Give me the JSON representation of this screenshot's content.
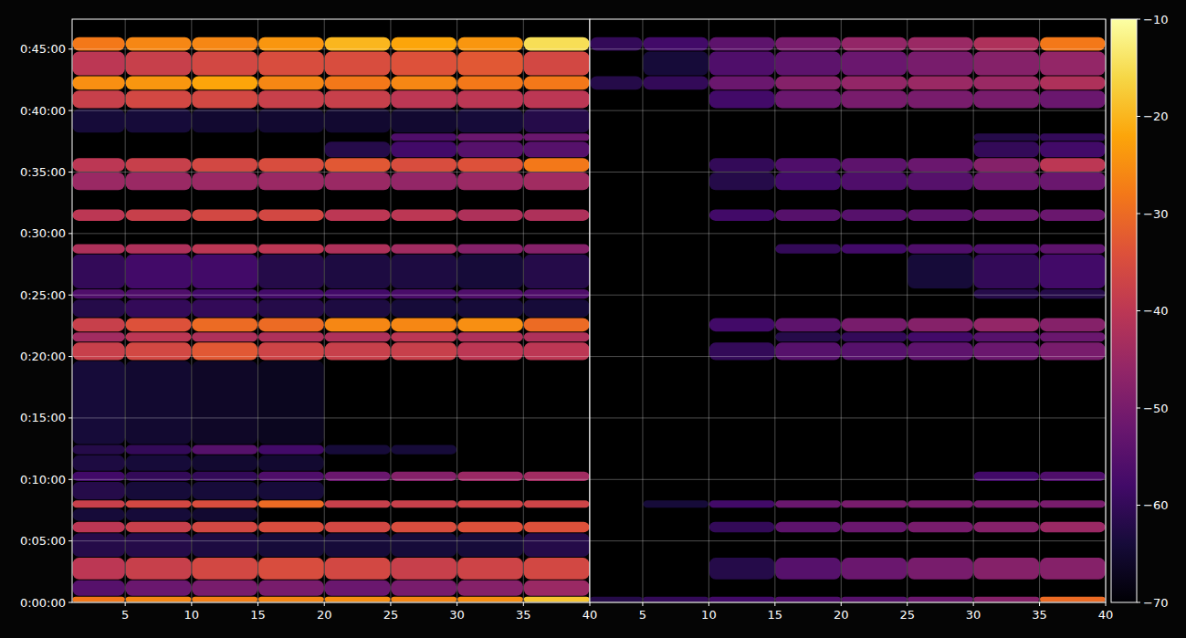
{
  "chart_data": {
    "type": "heatmap",
    "grid": true,
    "ylim": [
      0,
      2846
    ],
    "yticks": [
      {
        "value": 0,
        "label": "0:00:00"
      },
      {
        "value": 300,
        "label": "0:05:00"
      },
      {
        "value": 600,
        "label": "0:10:00"
      },
      {
        "value": 900,
        "label": "0:15:00"
      },
      {
        "value": 1200,
        "label": "0:20:00"
      },
      {
        "value": 1500,
        "label": "0:25:00"
      },
      {
        "value": 1800,
        "label": "0:30:00"
      },
      {
        "value": 2100,
        "label": "0:35:00"
      },
      {
        "value": 2400,
        "label": "0:40:00"
      },
      {
        "value": 2700,
        "label": "0:45:00"
      }
    ],
    "x_edges": [
      1,
      5,
      10,
      15,
      20,
      25,
      30,
      35,
      40
    ],
    "y_edges": [
      0,
      30,
      110,
      220,
      340,
      395,
      460,
      500,
      590,
      640,
      720,
      770,
      1180,
      1270,
      1320,
      1390,
      1480,
      1530,
      1700,
      1750,
      1860,
      1920,
      2010,
      2100,
      2170,
      2250,
      2290,
      2410,
      2500,
      2570,
      2690,
      2760
    ],
    "colorbar": {
      "range": [
        -70,
        -10
      ],
      "ticks": [
        {
          "value": -70,
          "label": "−70"
        },
        {
          "value": -60,
          "label": "−60"
        },
        {
          "value": -50,
          "label": "−50"
        },
        {
          "value": -40,
          "label": "−40"
        },
        {
          "value": -30,
          "label": "−30"
        },
        {
          "value": -20,
          "label": "−20"
        },
        {
          "value": -10,
          "label": "−10"
        }
      ]
    },
    "panels": [
      {
        "xlim": [
          1,
          40
        ],
        "xticks": [
          5,
          10,
          15,
          20,
          25,
          30,
          35,
          40
        ],
        "values": [
          [
            -28,
            -26,
            -27,
            -26,
            -25,
            -26,
            -25,
            -18
          ],
          [
            -55,
            -52,
            -50,
            -50,
            -52,
            -50,
            -48,
            -45
          ],
          [
            -40,
            -38,
            -36,
            -35,
            -36,
            -38,
            -37,
            -36
          ],
          [
            -62,
            -62,
            -63,
            -64,
            -64,
            -64,
            -64,
            -62
          ],
          [
            -40,
            -38,
            -36,
            -35,
            -36,
            -35,
            -34,
            -34
          ],
          [
            -64,
            -64,
            -65,
            null,
            null,
            null,
            null,
            null
          ],
          [
            -38,
            -36,
            -35,
            -30,
            -38,
            -38,
            -37,
            -37
          ],
          [
            -62,
            -64,
            -64,
            -64,
            null,
            null,
            null,
            null
          ],
          [
            -58,
            -60,
            -60,
            -56,
            -52,
            -48,
            -45,
            -44
          ],
          [
            -63,
            -64,
            -65,
            -65,
            null,
            null,
            null,
            null
          ],
          [
            -62,
            -60,
            -55,
            -58,
            -64,
            -64,
            null,
            null
          ],
          [
            -64,
            -65,
            -66,
            -67,
            null,
            null,
            null,
            null
          ],
          [
            -38,
            -36,
            -33,
            -37,
            -38,
            -38,
            -40,
            -40
          ],
          [
            -44,
            -40,
            -42,
            -42,
            -42,
            -40,
            -42,
            -42
          ],
          [
            -38,
            -34,
            -30,
            -30,
            -26,
            -26,
            -25,
            -30
          ],
          [
            -62,
            -60,
            -60,
            -62,
            -63,
            -64,
            -64,
            -64
          ],
          [
            -56,
            -56,
            -58,
            -58,
            -58,
            -57,
            -56,
            -56
          ],
          [
            -60,
            -58,
            -58,
            -62,
            -63,
            -63,
            -64,
            -62
          ],
          [
            -42,
            -42,
            -40,
            -40,
            -42,
            -44,
            -48,
            -48
          ],
          [
            null,
            null,
            null,
            null,
            null,
            null,
            null,
            null
          ],
          [
            -40,
            -38,
            -36,
            -36,
            -40,
            -40,
            -42,
            -42
          ],
          [
            null,
            null,
            null,
            null,
            null,
            null,
            null,
            null
          ],
          [
            -45,
            -45,
            -45,
            -45,
            -45,
            -46,
            -45,
            -44
          ],
          [
            -40,
            -38,
            -36,
            -35,
            -33,
            -35,
            -34,
            -28
          ],
          [
            null,
            null,
            null,
            null,
            -62,
            -58,
            -55,
            -55
          ],
          [
            null,
            null,
            null,
            null,
            null,
            -56,
            -52,
            -52
          ],
          [
            -64,
            -64,
            -65,
            -65,
            -65,
            -65,
            -64,
            -62
          ],
          [
            -38,
            -36,
            -36,
            -38,
            -38,
            -40,
            -40,
            -40
          ],
          [
            -25,
            -24,
            -22,
            -26,
            -28,
            -26,
            -28,
            -28
          ],
          [
            -40,
            -38,
            -36,
            -35,
            -35,
            -34,
            -33,
            -36
          ],
          [
            -28,
            -26,
            -26,
            -24,
            -20,
            -22,
            -24,
            -15
          ]
        ]
      },
      {
        "xlim": [
          1,
          40
        ],
        "xticks": [
          5,
          10,
          15,
          20,
          25,
          30,
          35,
          40
        ],
        "values": [
          [
            -62,
            -60,
            -58,
            -56,
            -55,
            -52,
            -48,
            -30
          ],
          [
            null,
            null,
            null,
            null,
            null,
            null,
            null,
            null
          ],
          [
            null,
            null,
            -62,
            -55,
            -52,
            -50,
            -48,
            -48
          ],
          [
            null,
            null,
            null,
            null,
            null,
            null,
            null,
            null
          ],
          [
            null,
            null,
            -60,
            -54,
            -52,
            -50,
            -48,
            -45
          ],
          [
            null,
            null,
            null,
            null,
            null,
            null,
            null,
            null
          ],
          [
            null,
            -64,
            -58,
            -52,
            -50,
            -50,
            -50,
            -50
          ],
          [
            null,
            null,
            null,
            null,
            null,
            null,
            null,
            null
          ],
          [
            null,
            null,
            null,
            null,
            null,
            null,
            -58,
            -56
          ],
          [
            null,
            null,
            null,
            null,
            null,
            null,
            null,
            null
          ],
          [
            null,
            null,
            null,
            null,
            null,
            null,
            null,
            null
          ],
          [
            null,
            null,
            null,
            null,
            null,
            null,
            null,
            null
          ],
          [
            null,
            null,
            -60,
            -55,
            -55,
            -54,
            -52,
            -50
          ],
          [
            null,
            null,
            null,
            -62,
            -60,
            -58,
            -55,
            -52
          ],
          [
            null,
            null,
            -58,
            -54,
            -50,
            -48,
            -46,
            -48
          ],
          [
            null,
            null,
            null,
            null,
            null,
            null,
            null,
            null
          ],
          [
            null,
            null,
            null,
            null,
            null,
            null,
            -62,
            -62
          ],
          [
            null,
            null,
            null,
            null,
            null,
            -64,
            -60,
            -58
          ],
          [
            null,
            null,
            null,
            -60,
            -58,
            -56,
            -56,
            -54
          ],
          [
            null,
            null,
            null,
            null,
            null,
            null,
            null,
            null
          ],
          [
            null,
            null,
            -58,
            -55,
            -55,
            -54,
            -52,
            -52
          ],
          [
            null,
            null,
            null,
            null,
            null,
            null,
            null,
            null
          ],
          [
            null,
            null,
            -62,
            -58,
            -56,
            -55,
            -52,
            -52
          ],
          [
            null,
            null,
            -60,
            -56,
            -54,
            -52,
            -48,
            -40
          ],
          [
            null,
            null,
            null,
            null,
            null,
            null,
            -60,
            -58
          ],
          [
            null,
            null,
            null,
            null,
            null,
            null,
            -62,
            -60
          ],
          [
            null,
            null,
            null,
            null,
            null,
            null,
            null,
            null
          ],
          [
            null,
            null,
            -58,
            -52,
            -50,
            -50,
            -50,
            -52
          ],
          [
            -62,
            -60,
            -52,
            -48,
            -46,
            -45,
            -45,
            -42
          ],
          [
            null,
            -64,
            -56,
            -54,
            -52,
            -50,
            -48,
            -46
          ],
          [
            -60,
            -58,
            -54,
            -50,
            -46,
            -45,
            -42,
            -28
          ]
        ]
      }
    ]
  }
}
